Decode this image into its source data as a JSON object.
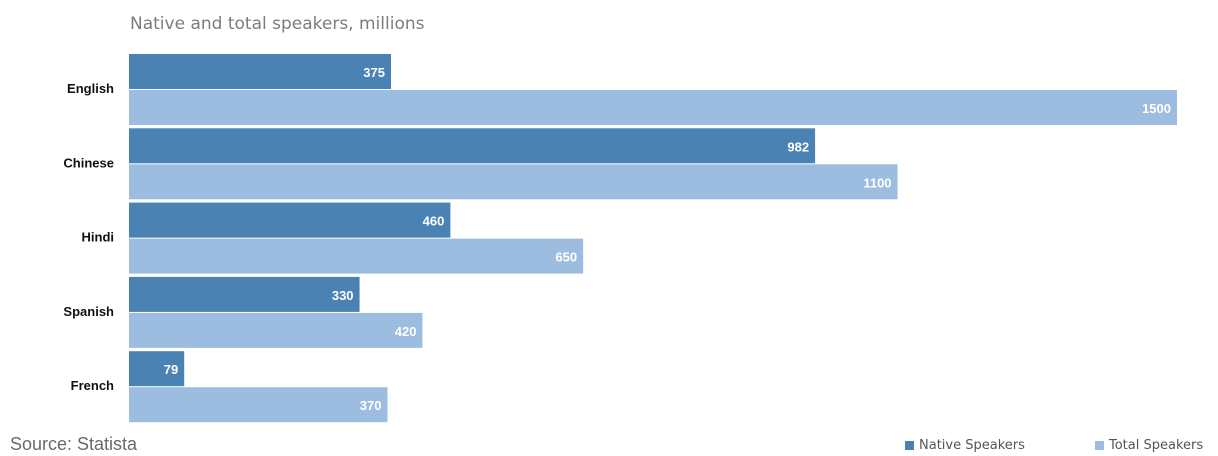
{
  "chart_data": {
    "type": "bar",
    "orientation": "horizontal",
    "title": "Native and total speakers, millions",
    "categories": [
      "English",
      "Chinese",
      "Hindi",
      "Spanish",
      "French"
    ],
    "series": [
      {
        "name": "Native Speakers",
        "values": [
          375,
          982,
          460,
          330,
          79
        ],
        "color": "#4a82b4"
      },
      {
        "name": "Total Speakers",
        "values": [
          1500,
          1100,
          650,
          420,
          370
        ],
        "color": "#9dbde0"
      }
    ],
    "xlim": [
      0,
      1500
    ],
    "grid": false,
    "legend_position": "bottom-right",
    "source": "Source: Statista"
  }
}
